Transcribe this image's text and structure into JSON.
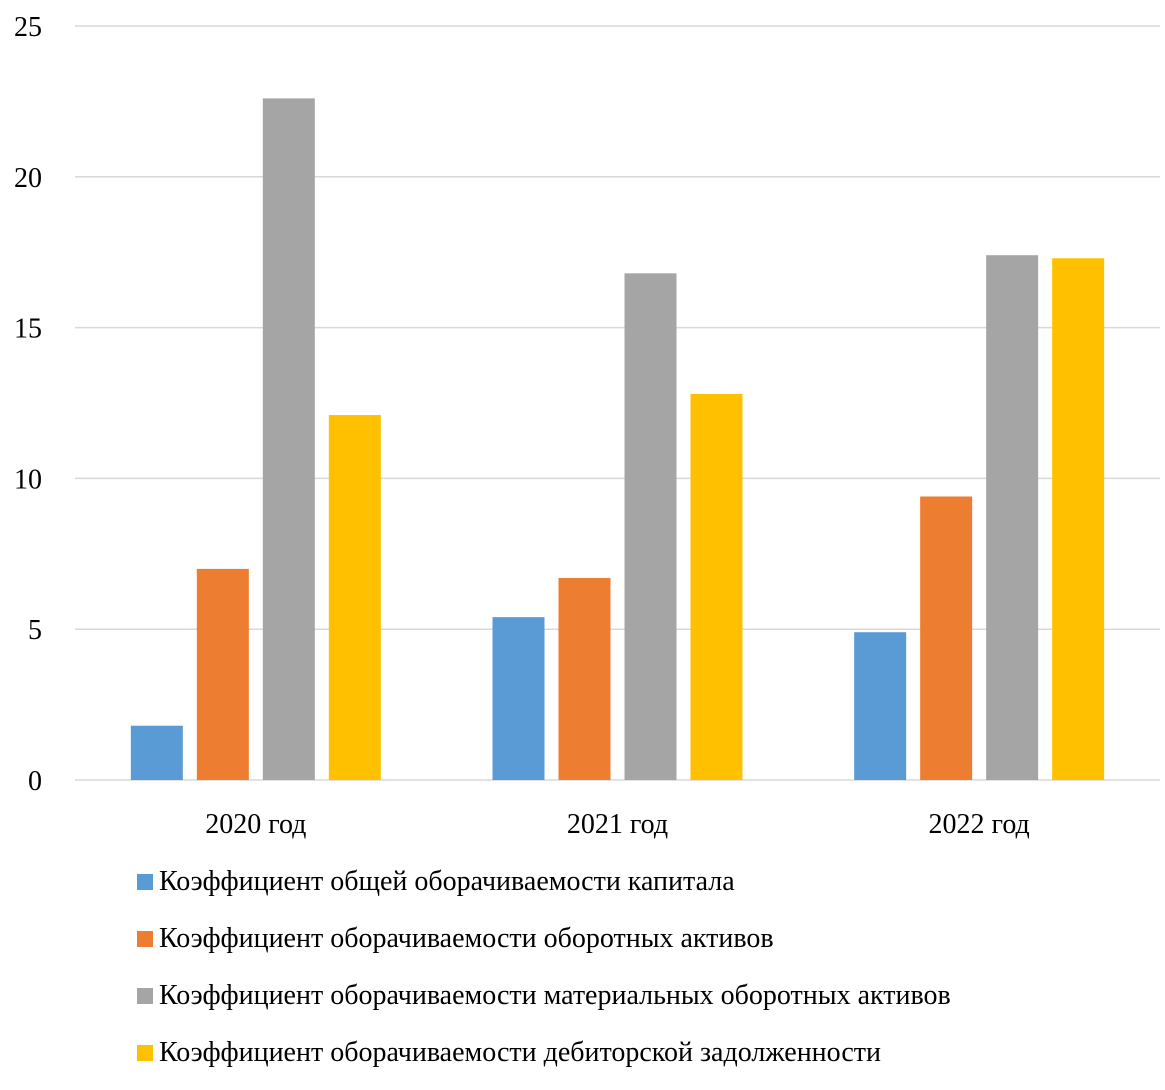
{
  "chart_data": {
    "type": "bar",
    "title": "",
    "xlabel": "",
    "ylabel": "",
    "categories": [
      "2020 год",
      "2021 год",
      "2022 год"
    ],
    "ylim": [
      0,
      25
    ],
    "yticks": [
      "0",
      "5",
      "10",
      "15",
      "20",
      "25"
    ],
    "grid": true,
    "legend_position": "bottom",
    "series": [
      {
        "name": "Коэффициент общей оборачиваемости капитала",
        "color": "#5b9bd5",
        "values": [
          1.8,
          5.4,
          4.9
        ]
      },
      {
        "name": "Коэффициент оборачиваемости оборотных активов",
        "color": "#ed7d31",
        "values": [
          7.0,
          6.7,
          9.4
        ]
      },
      {
        "name": "Коэффициент оборачиваемости материальных оборотных активов",
        "color": "#a5a5a5",
        "values": [
          22.6,
          16.8,
          17.4
        ]
      },
      {
        "name": "Коэффициент оборачиваемости дебиторской задолженности",
        "color": "#ffc000",
        "values": [
          12.1,
          12.8,
          17.3
        ]
      }
    ]
  }
}
